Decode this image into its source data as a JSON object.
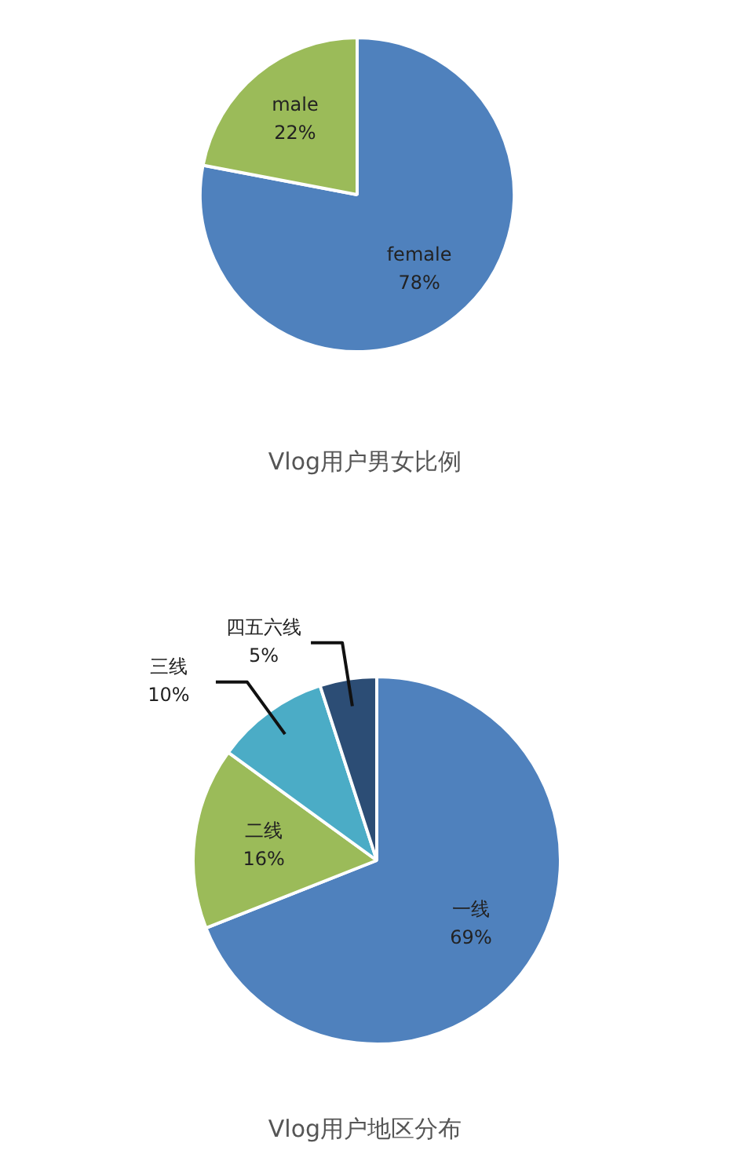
{
  "chart_data": [
    {
      "type": "pie",
      "title": "Vlog用户男女比例",
      "categories": [
        "female",
        "male"
      ],
      "values": [
        78,
        22
      ],
      "colors": [
        "#4f81bd",
        "#9bbb59"
      ],
      "value_labels": [
        "78%",
        "22%"
      ],
      "legend": false
    },
    {
      "type": "pie",
      "title": "Vlog用户地区分布",
      "categories": [
        "一线",
        "二线",
        "三线",
        "四五六线"
      ],
      "values": [
        69,
        16,
        10,
        5
      ],
      "colors": [
        "#4f81bd",
        "#9bbb59",
        "#4bacc6",
        "#2c4d75"
      ],
      "value_labels": [
        "69%",
        "16%",
        "10%",
        "5%"
      ],
      "legend": false
    }
  ]
}
